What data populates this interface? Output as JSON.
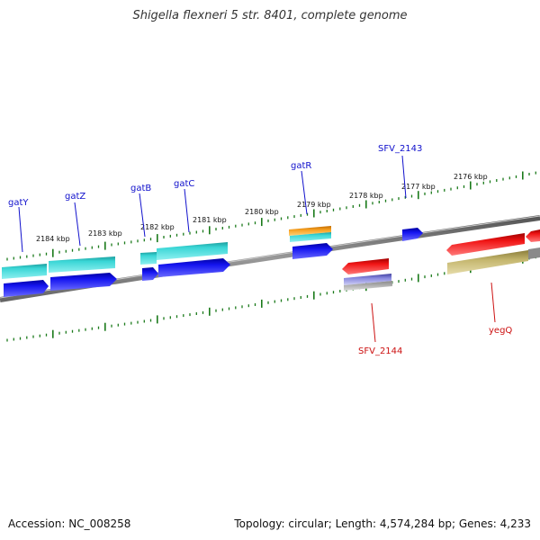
{
  "title": "Shigella flexneri 5 str. 8401, complete genome",
  "footer": {
    "accession": "Accession: NC_008258",
    "summary": "Topology: circular; Length: 4,574,284 bp; Genes: 4,233"
  },
  "colors": {
    "background": "#ffffff",
    "tick": "#1a7a1a",
    "backbone": "#777777",
    "gene_forward": "#1010ee",
    "gene_reverse": "#ee1010",
    "cds_cyan": "#22cccc",
    "orange": "#f39c12",
    "purple": "#8080d0",
    "olive": "#c2b46a",
    "label_forward": "#1010cc",
    "label_reverse": "#cc1010"
  },
  "axis": {
    "unit": "kbp",
    "labels": [
      "2184 kbp",
      "2183 kbp",
      "2182 kbp",
      "2181 kbp",
      "2180 kbp",
      "2179 kbp",
      "2178 kbp",
      "2177 kbp",
      "2176 kbp"
    ]
  },
  "genes": {
    "forward": [
      "gatY",
      "gatZ",
      "gatB",
      "gatC",
      "gatR",
      "SFV_2143"
    ],
    "reverse": [
      "SFV_2144",
      "yegQ"
    ]
  }
}
